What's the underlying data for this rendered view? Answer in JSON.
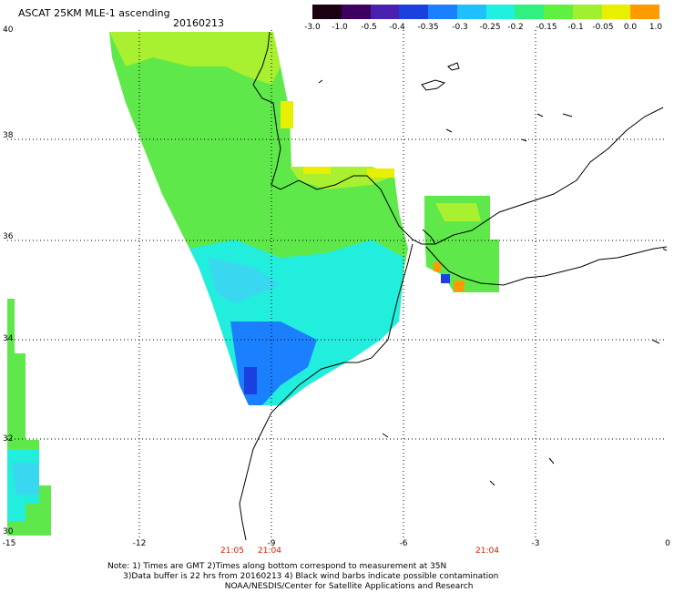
{
  "header": {
    "title": "ASCAT 25KM MLE-1 ascending",
    "date": "20160213"
  },
  "colorbar": {
    "labels": [
      "-3.0",
      "-1.0",
      "-0.5",
      "-0.4",
      "-0.35",
      "-0.3",
      "-0.25",
      "-0.2",
      "-0.15",
      "-0.1",
      "-0.05",
      "0.0",
      "1.0"
    ],
    "colors": [
      "#1a0010",
      "#3b0060",
      "#4a20b0",
      "#1a40e0",
      "#1a80ff",
      "#20c0ff",
      "#20f0e0",
      "#30f080",
      "#60f040",
      "#a0f030",
      "#e8f000",
      "#ff9a00",
      "#ff2010"
    ]
  },
  "axes": {
    "lat_labels": [
      "40",
      "38",
      "36",
      "34",
      "32",
      "30"
    ],
    "lon_labels": [
      "-15",
      "-12",
      "-9",
      "-6",
      "-3",
      "0"
    ],
    "time_labels": [
      "21:05",
      "21:04",
      "21:04"
    ]
  },
  "notes": [
    "Note: 1) Times are GMT 2)Times along bottom correspond to measurement at 35N",
    "      3)Data buffer is 22 hrs from 20160213 4) Black wind barbs indicate possible contamination",
    "                                             NOAA/NESDIS/Center for Satellite Applications and Research"
  ],
  "map_colors": {
    "green": "#5ee84a",
    "lime": "#a8f030",
    "yellow": "#e8f000",
    "cyan": "#22eedd",
    "aqua": "#3ad8f0",
    "blue": "#1a80ff",
    "deepblue": "#1a40e0",
    "orange": "#ff9a00"
  }
}
